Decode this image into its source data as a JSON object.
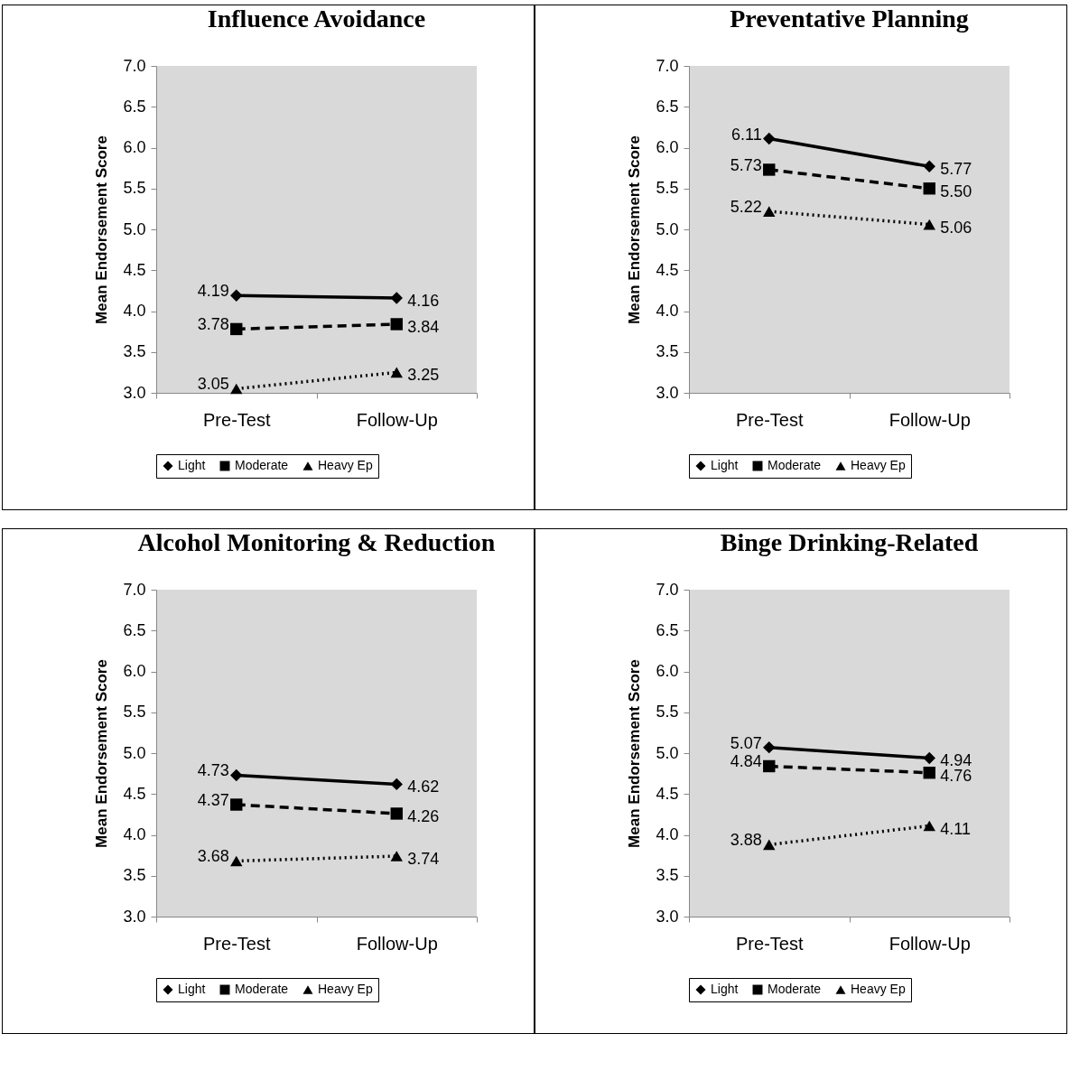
{
  "chart_data": [
    {
      "type": "line",
      "title": "Influence Avoidance",
      "ylabel": "Mean Endorsement Score",
      "categories": [
        "Pre-Test",
        "Follow-Up"
      ],
      "ylim": [
        3,
        7
      ],
      "yticks": [
        {
          "value": 3,
          "label": "3.0"
        },
        {
          "value": 3.5,
          "label": "3.5"
        },
        {
          "value": 4,
          "label": "4.0"
        },
        {
          "value": 4.5,
          "label": "4.5"
        },
        {
          "value": 5,
          "label": "5.0"
        },
        {
          "value": 5.5,
          "label": "5.5"
        },
        {
          "value": 6,
          "label": "6.0"
        },
        {
          "value": 6.5,
          "label": "6.5"
        },
        {
          "value": 7,
          "label": "7.0"
        }
      ],
      "grid": false,
      "legend": "bottom",
      "series": [
        {
          "name": "Light",
          "color": "#000000",
          "marker": "diamond",
          "line_style": "solid",
          "values": [
            4.19,
            4.16
          ],
          "value_labels": [
            "4.19",
            "4.16"
          ]
        },
        {
          "name": "Moderate",
          "color": "#000000",
          "marker": "square",
          "line_style": "dashed",
          "values": [
            3.78,
            3.84
          ],
          "value_labels": [
            "3.78",
            "3.84"
          ]
        },
        {
          "name": "Heavy Ep",
          "color": "#000000",
          "marker": "triangle",
          "line_style": "dotted",
          "values": [
            3.05,
            3.25
          ],
          "value_labels": [
            "3.05",
            "3.25"
          ]
        }
      ]
    },
    {
      "type": "line",
      "title": "Preventative Planning",
      "ylabel": "Mean Endorsement Score",
      "categories": [
        "Pre-Test",
        "Follow-Up"
      ],
      "ylim": [
        3,
        7
      ],
      "yticks": [
        {
          "value": 3,
          "label": "3.0"
        },
        {
          "value": 3.5,
          "label": "3.5"
        },
        {
          "value": 4,
          "label": "4.0"
        },
        {
          "value": 4.5,
          "label": "4.5"
        },
        {
          "value": 5,
          "label": "5.0"
        },
        {
          "value": 5.5,
          "label": "5.5"
        },
        {
          "value": 6,
          "label": "6.0"
        },
        {
          "value": 6.5,
          "label": "6.5"
        },
        {
          "value": 7,
          "label": "7.0"
        }
      ],
      "grid": false,
      "legend": "bottom",
      "series": [
        {
          "name": "Light",
          "color": "#000000",
          "marker": "diamond",
          "line_style": "solid",
          "values": [
            6.11,
            5.77
          ],
          "value_labels": [
            "6.11",
            "5.77"
          ]
        },
        {
          "name": "Moderate",
          "color": "#000000",
          "marker": "square",
          "line_style": "dashed",
          "values": [
            5.73,
            5.5
          ],
          "value_labels": [
            "5.73",
            "5.50"
          ]
        },
        {
          "name": "Heavy Ep",
          "color": "#000000",
          "marker": "triangle",
          "line_style": "dotted",
          "values": [
            5.22,
            5.06
          ],
          "value_labels": [
            "5.22",
            "5.06"
          ]
        }
      ]
    },
    {
      "type": "line",
      "title": "Alcohol Monitoring & Reduction",
      "ylabel": "Mean Endorsement Score",
      "categories": [
        "Pre-Test",
        "Follow-Up"
      ],
      "ylim": [
        3,
        7
      ],
      "yticks": [
        {
          "value": 3,
          "label": "3.0"
        },
        {
          "value": 3.5,
          "label": "3.5"
        },
        {
          "value": 4,
          "label": "4.0"
        },
        {
          "value": 4.5,
          "label": "4.5"
        },
        {
          "value": 5,
          "label": "5.0"
        },
        {
          "value": 5.5,
          "label": "5.5"
        },
        {
          "value": 6,
          "label": "6.0"
        },
        {
          "value": 6.5,
          "label": "6.5"
        },
        {
          "value": 7,
          "label": "7.0"
        }
      ],
      "grid": false,
      "legend": "bottom",
      "series": [
        {
          "name": "Light",
          "color": "#000000",
          "marker": "diamond",
          "line_style": "solid",
          "values": [
            4.73,
            4.62
          ],
          "value_labels": [
            "4.73",
            "4.62"
          ]
        },
        {
          "name": "Moderate",
          "color": "#000000",
          "marker": "square",
          "line_style": "dashed",
          "values": [
            4.37,
            4.26
          ],
          "value_labels": [
            "4.37",
            "4.26"
          ]
        },
        {
          "name": "Heavy Ep",
          "color": "#000000",
          "marker": "triangle",
          "line_style": "dotted",
          "values": [
            3.68,
            3.74
          ],
          "value_labels": [
            "3.68",
            "3.74"
          ]
        }
      ]
    },
    {
      "type": "line",
      "title": "Binge Drinking-Related",
      "ylabel": "Mean Endorsement Score",
      "categories": [
        "Pre-Test",
        "Follow-Up"
      ],
      "ylim": [
        3,
        7
      ],
      "yticks": [
        {
          "value": 3,
          "label": "3.0"
        },
        {
          "value": 3.5,
          "label": "3.5"
        },
        {
          "value": 4,
          "label": "4.0"
        },
        {
          "value": 4.5,
          "label": "4.5"
        },
        {
          "value": 5,
          "label": "5.0"
        },
        {
          "value": 5.5,
          "label": "5.5"
        },
        {
          "value": 6,
          "label": "6.0"
        },
        {
          "value": 6.5,
          "label": "6.5"
        },
        {
          "value": 7,
          "label": "7.0"
        }
      ],
      "grid": false,
      "legend": "bottom",
      "series": [
        {
          "name": "Light",
          "color": "#000000",
          "marker": "diamond",
          "line_style": "solid",
          "values": [
            5.07,
            4.94
          ],
          "value_labels": [
            "5.07",
            "4.94"
          ]
        },
        {
          "name": "Moderate",
          "color": "#000000",
          "marker": "square",
          "line_style": "dashed",
          "values": [
            4.84,
            4.76
          ],
          "value_labels": [
            "4.84",
            "4.76"
          ]
        },
        {
          "name": "Heavy Ep",
          "color": "#000000",
          "marker": "triangle",
          "line_style": "dotted",
          "values": [
            3.88,
            4.11
          ],
          "value_labels": [
            "3.88",
            "4.11"
          ]
        }
      ]
    }
  ]
}
